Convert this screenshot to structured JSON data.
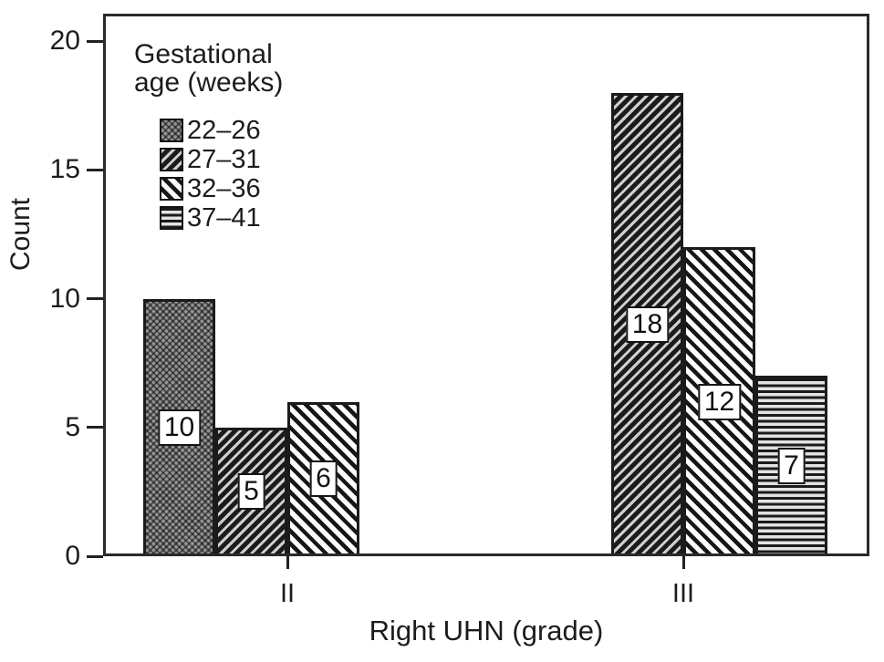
{
  "chart_data": {
    "type": "bar",
    "title": "",
    "xlabel": "Right UHN (grade)",
    "ylabel": "Count",
    "legend_title": "Gestational age (weeks)",
    "legend_position": "upper-left-inside",
    "categories": [
      "II",
      "III"
    ],
    "series": [
      {
        "name": "22–26",
        "pattern": "checker",
        "values": [
          10,
          null
        ]
      },
      {
        "name": "27–31",
        "pattern": "diag-forward",
        "values": [
          5,
          18
        ]
      },
      {
        "name": "32–36",
        "pattern": "diag-back",
        "values": [
          6,
          12
        ]
      },
      {
        "name": "37–41",
        "pattern": "horizontal",
        "values": [
          null,
          7
        ]
      }
    ],
    "yticks": [
      0,
      5,
      10,
      15,
      20
    ],
    "ylim": [
      0,
      20
    ],
    "grid": false,
    "bar_value_labels": true
  }
}
